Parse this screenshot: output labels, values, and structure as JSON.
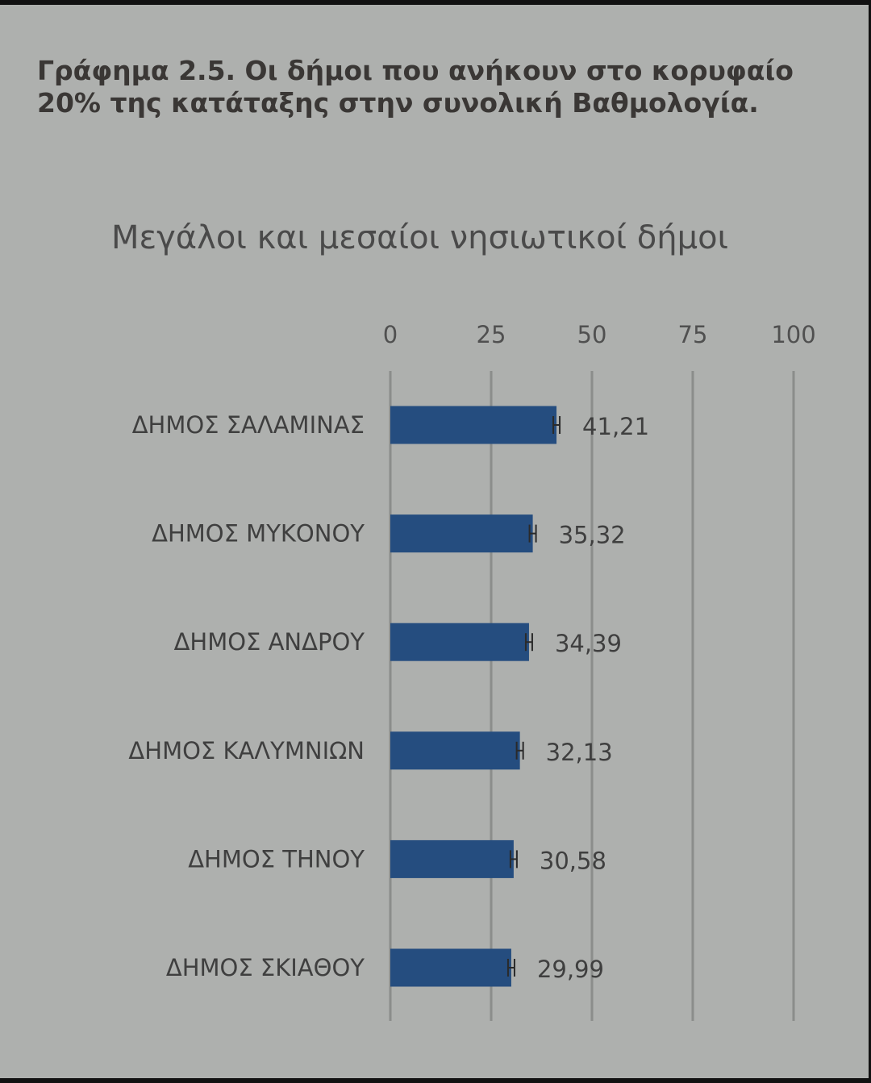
{
  "figure_caption": "Γράφημα 2.5. Οι δήμοι που ανήκουν στο κορυφαίο 20% της κατάταξης στην συνολική Βαθμολογία.",
  "colors": {
    "bar": "#254d7f",
    "gridline": "#8b8d8b",
    "panel_background": "#aeb0ae",
    "frame": "#121212"
  },
  "chart_data": {
    "type": "bar",
    "orientation": "horizontal",
    "title": "Μεγάλοι και μεσαίοι νησιωτικοί δήμοι",
    "categories": [
      "ΔΗΜΟΣ ΣΑΛΑΜΙΝΑΣ",
      "ΔΗΜΟΣ ΜΥΚΟΝΟΥ",
      "ΔΗΜΟΣ ΑΝΔΡΟΥ",
      "ΔΗΜΟΣ ΚΑΛΥΜΝΙΩΝ",
      "ΔΗΜΟΣ ΤΗΝΟΥ",
      "ΔΗΜΟΣ ΣΚΙΑΘΟΥ"
    ],
    "values": [
      41.21,
      35.32,
      34.39,
      32.13,
      30.58,
      29.99
    ],
    "value_labels": [
      "41,21",
      "35,32",
      "34,39",
      "32,13",
      "30,58",
      "29,99"
    ],
    "xlim": [
      0,
      100
    ],
    "xticks": [
      0,
      25,
      50,
      75,
      100
    ],
    "xtick_labels": [
      "0",
      "25",
      "50",
      "75",
      "100"
    ],
    "axis_position": "top",
    "grid": true,
    "error_bars": true
  }
}
